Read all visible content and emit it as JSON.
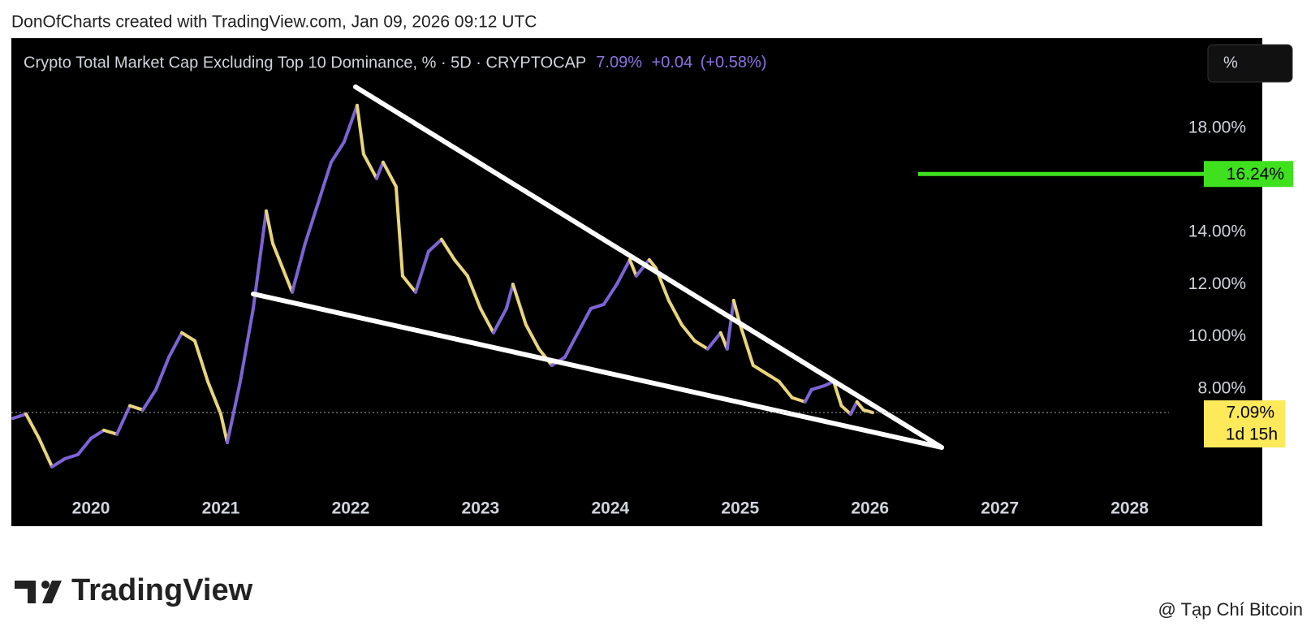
{
  "header": {
    "credit": "DonOfCharts created with TradingView.com, Jan 09, 2026 09:12 UTC",
    "unit_button": "%"
  },
  "footer": {
    "logo": "TradingView",
    "watermark": "@ Tạp Chí Bitcoin"
  },
  "chart_data": {
    "type": "line",
    "title": "Crypto Total Market Cap Excluding Top 10 Dominance, % · 5D · CRYPTOCAP",
    "stats": {
      "last": "7.09%",
      "change": "+0.04",
      "change_pct": "(+0.58%)"
    },
    "up_color": "#7e63d6",
    "down_color": "#e8d57c",
    "x": [
      2019.4,
      2019.5,
      2019.6,
      2019.7,
      2019.8,
      2019.9,
      2020.0,
      2020.1,
      2020.2,
      2020.3,
      2020.4,
      2020.5,
      2020.6,
      2020.7,
      2020.8,
      2020.9,
      2021.0,
      2021.05,
      2021.15,
      2021.25,
      2021.3,
      2021.35,
      2021.4,
      2021.5,
      2021.55,
      2021.65,
      2021.75,
      2021.85,
      2021.95,
      2022.05,
      2022.1,
      2022.2,
      2022.25,
      2022.35,
      2022.4,
      2022.5,
      2022.6,
      2022.7,
      2022.8,
      2022.9,
      2023.0,
      2023.1,
      2023.2,
      2023.25,
      2023.35,
      2023.45,
      2023.55,
      2023.65,
      2023.75,
      2023.85,
      2023.95,
      2024.05,
      2024.15,
      2024.2,
      2024.3,
      2024.35,
      2024.45,
      2024.55,
      2024.65,
      2024.75,
      2024.85,
      2024.9,
      2024.95,
      2025.0,
      2025.1,
      2025.2,
      2025.3,
      2025.4,
      2025.5,
      2025.55,
      2025.65,
      2025.72,
      2025.78,
      2025.85,
      2025.9,
      2025.95,
      2026.02
    ],
    "series": [
      {
        "name": "CRYPTOCAP",
        "values": [
          6.87,
          7.03,
          6.1,
          5.01,
          5.32,
          5.48,
          6.1,
          6.41,
          6.26,
          7.35,
          7.19,
          7.97,
          9.21,
          10.15,
          9.84,
          8.28,
          7.03,
          5.94,
          8.28,
          11.08,
          12.95,
          14.82,
          13.58,
          12.33,
          11.71,
          13.58,
          15.13,
          16.69,
          17.47,
          18.87,
          17.0,
          16.07,
          16.69,
          15.75,
          12.33,
          11.71,
          13.27,
          13.73,
          12.95,
          12.33,
          11.08,
          10.15,
          11.08,
          12.01,
          10.46,
          9.53,
          8.9,
          9.21,
          10.15,
          11.08,
          11.24,
          12.01,
          12.95,
          12.33,
          12.95,
          12.64,
          11.39,
          10.46,
          9.84,
          9.53,
          10.15,
          9.53,
          11.39,
          10.46,
          8.9,
          8.59,
          8.28,
          7.66,
          7.5,
          7.97,
          8.12,
          8.28,
          7.35,
          7.03,
          7.5,
          7.19,
          7.09
        ]
      }
    ],
    "xlim": [
      2019.387,
      2028.24
    ],
    "xticks": [
      2020,
      2021,
      2022,
      2023,
      2024,
      2025,
      2026,
      2027,
      2028
    ],
    "ylim": [
      4.07,
      21.2
    ],
    "yticks": [
      {
        "value": 8,
        "label": "8.00%"
      },
      {
        "value": 10,
        "label": "10.00%"
      },
      {
        "value": 12,
        "label": "12.00%"
      },
      {
        "value": 14,
        "label": "14.00%"
      },
      {
        "value": 18,
        "label": "18.00%"
      }
    ],
    "level": {
      "value": 16.24,
      "label": "16.24%",
      "color": "#3fe11f"
    },
    "last_price": {
      "value": 7.09,
      "label": "7.09%",
      "countdown": "1d 15h",
      "color": "#fde95a"
    }
  }
}
